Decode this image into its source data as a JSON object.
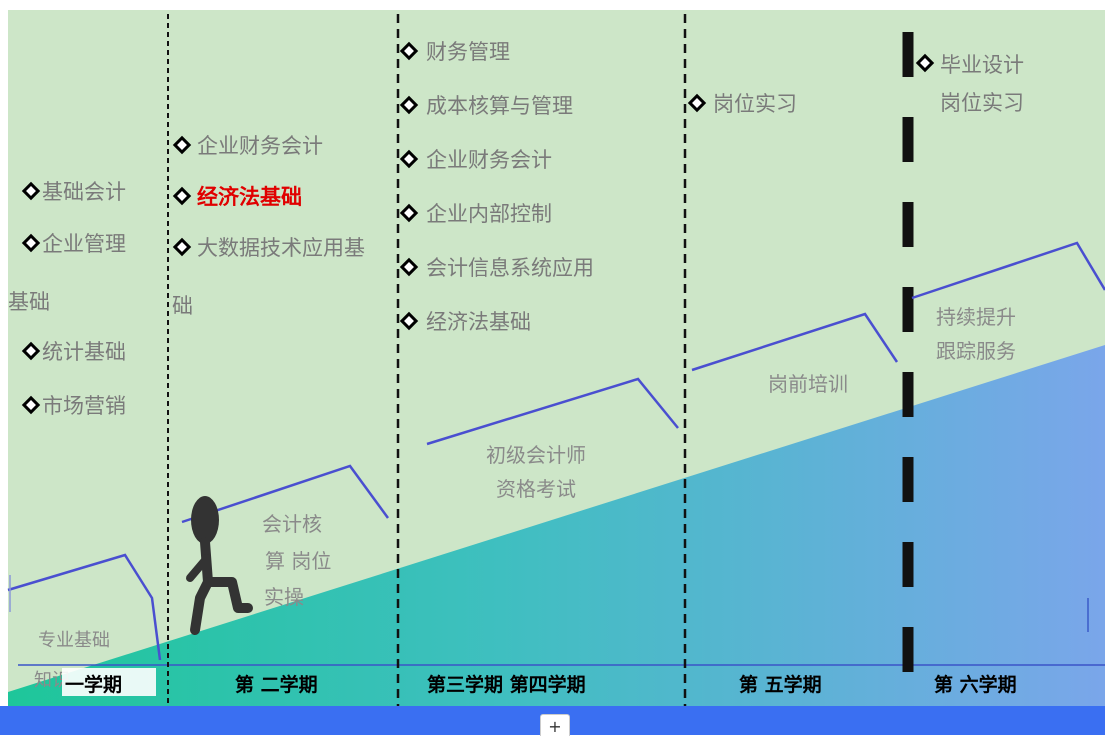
{
  "colors": {
    "background": "#cde6c8",
    "ramp_start": "#1ec69a",
    "ramp_end": "#7aa6ea",
    "step_line": "#4a4fd0",
    "highlight": "#e00000",
    "bottom_bar": "#3a6ff2"
  },
  "columns": [
    {
      "courses": [
        {
          "text": "基础会计",
          "highlight": false
        },
        {
          "text": "企业管理",
          "highlight": false,
          "continuation": "基础"
        },
        {
          "text": "统计基础",
          "highlight": false
        },
        {
          "text": "市场营销",
          "highlight": false
        }
      ],
      "stage": [
        "专业基础",
        "知识"
      ],
      "semester": "一学期"
    },
    {
      "courses": [
        {
          "text": "企业财务会计",
          "highlight": false
        },
        {
          "text": "经济法基础",
          "highlight": true
        },
        {
          "text": "大数据技术应用基",
          "highlight": false,
          "continuation": "础"
        }
      ],
      "stage": [
        "会计核",
        "算 岗位",
        "实操"
      ],
      "semester": "第 二学期"
    },
    {
      "courses": [
        {
          "text": "财务管理",
          "highlight": false
        },
        {
          "text": "成本核算与管理",
          "highlight": false
        },
        {
          "text": "企业财务会计",
          "highlight": false
        },
        {
          "text": "企业内部控制",
          "highlight": false
        },
        {
          "text": "会计信息系统应用",
          "highlight": false
        },
        {
          "text": "经济法基础",
          "highlight": false
        }
      ],
      "stage": [
        "初级会计师",
        "资格考试"
      ],
      "semester": "第三学期 第四学期"
    },
    {
      "courses": [
        {
          "text": "岗位实习",
          "highlight": false
        }
      ],
      "stage": [
        "岗前培训"
      ],
      "semester": "第 五学期"
    },
    {
      "courses": [
        {
          "text": "毕业设计",
          "highlight": false,
          "continuation": "岗位实习"
        }
      ],
      "stage": [
        "持续提升",
        "跟踪服务"
      ],
      "semester": "第 六学期"
    }
  ],
  "bottom_bar": {
    "button_label": "+"
  }
}
